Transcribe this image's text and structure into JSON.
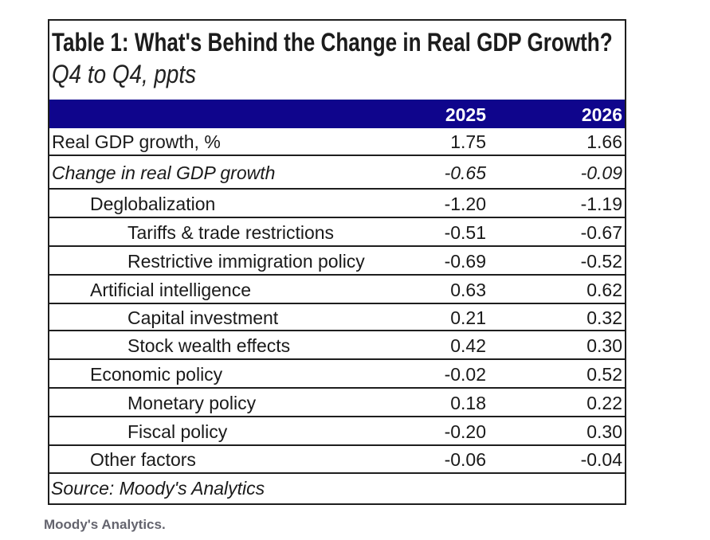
{
  "caption": {
    "text": "Moody's Analytics."
  },
  "colors": {
    "header_bg": "#0f058c",
    "header_text": "#ffffff",
    "border": "#1e1e1e",
    "text": "#1a1a1a",
    "caption_text": "#64646e"
  },
  "chart_data": {
    "type": "table",
    "title": "Table 1: What's Behind the Change in Real GDP Growth?",
    "subtitle": "Q4 to Q4, ppts",
    "columns": [
      "2025",
      "2026"
    ],
    "rows": [
      {
        "label": "Real GDP growth, %",
        "indent": 0,
        "italic": false,
        "values": [
          "1.75",
          "1.66"
        ]
      },
      {
        "label": "Change in real GDP growth",
        "indent": 0,
        "italic": true,
        "values": [
          "-0.65",
          "-0.09"
        ]
      },
      {
        "label": "Deglobalization",
        "indent": 1,
        "italic": false,
        "values": [
          "-1.20",
          "-1.19"
        ]
      },
      {
        "label": "Tariffs & trade restrictions",
        "indent": 2,
        "italic": false,
        "values": [
          "-0.51",
          "-0.67"
        ]
      },
      {
        "label": "Restrictive immigration policy",
        "indent": 2,
        "italic": false,
        "values": [
          "-0.69",
          "-0.52"
        ]
      },
      {
        "label": "Artificial intelligence",
        "indent": 1,
        "italic": false,
        "values": [
          "0.63",
          "0.62"
        ]
      },
      {
        "label": "Capital investment",
        "indent": 2,
        "italic": false,
        "values": [
          "0.21",
          "0.32"
        ]
      },
      {
        "label": "Stock wealth effects",
        "indent": 2,
        "italic": false,
        "values": [
          "0.42",
          "0.30"
        ]
      },
      {
        "label": "Economic policy",
        "indent": 1,
        "italic": false,
        "values": [
          "-0.02",
          "0.52"
        ]
      },
      {
        "label": "Monetary policy",
        "indent": 2,
        "italic": false,
        "values": [
          "0.18",
          "0.22"
        ]
      },
      {
        "label": "Fiscal policy",
        "indent": 2,
        "italic": false,
        "values": [
          "-0.20",
          "0.30"
        ]
      },
      {
        "label": "Other factors",
        "indent": 1,
        "italic": false,
        "values": [
          "-0.06",
          "-0.04"
        ]
      }
    ],
    "source": "Source: Moody's Analytics"
  }
}
